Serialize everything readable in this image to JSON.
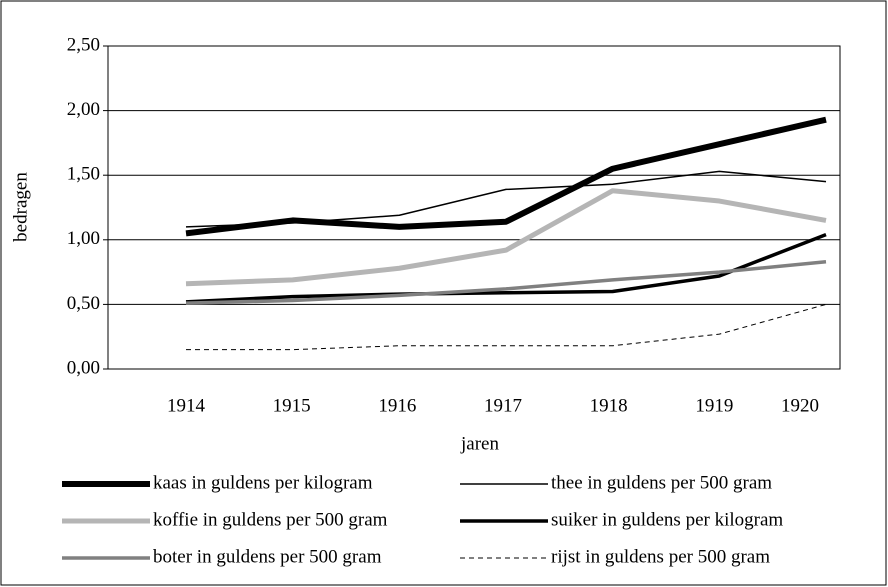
{
  "chart_data": {
    "type": "line",
    "x_label": "jaren",
    "y_label": "bedragen",
    "categories": [
      "1914",
      "1915",
      "1916",
      "1917",
      "1918",
      "1919",
      "1920"
    ],
    "ylim": [
      0,
      2.5
    ],
    "yticks": [
      {
        "value": 0,
        "label": "0,00"
      },
      {
        "value": 0.5,
        "label": "0,50"
      },
      {
        "value": 1,
        "label": "1,00"
      },
      {
        "value": 1.5,
        "label": "1,50"
      },
      {
        "value": 2,
        "label": "2,00"
      },
      {
        "value": 2.5,
        "label": "2,50"
      }
    ],
    "grid": true,
    "legend": "bottom",
    "series": [
      {
        "name": "kaas in guldens per kilogram",
        "color": "#000000",
        "width": 6,
        "dash": "none",
        "values": [
          1.05,
          1.15,
          1.1,
          1.14,
          1.55,
          1.74,
          1.93
        ]
      },
      {
        "name": "thee in guldens per 500 gram",
        "color": "#000000",
        "width": 1.5,
        "dash": "none",
        "values": [
          1.1,
          1.13,
          1.19,
          1.39,
          1.43,
          1.53,
          1.45
        ]
      },
      {
        "name": "koffie in guldens per 500 gram",
        "color": "#b5b5b5",
        "width": 5,
        "dash": "none",
        "values": [
          0.66,
          0.69,
          0.78,
          0.92,
          1.38,
          1.3,
          1.15
        ]
      },
      {
        "name": "suiker in guldens per kilogram",
        "color": "#000000",
        "width": 3.5,
        "dash": "none",
        "values": [
          0.52,
          0.56,
          0.58,
          0.59,
          0.6,
          0.72,
          1.04
        ]
      },
      {
        "name": "boter in guldens per 500 gram",
        "color": "#808080",
        "width": 3.5,
        "dash": "none",
        "values": [
          0.51,
          0.53,
          0.57,
          0.62,
          0.69,
          0.75,
          0.83
        ]
      },
      {
        "name": "rijst in guldens per 500 gram",
        "color": "#000000",
        "width": 1,
        "dash": "5,4",
        "values": [
          0.15,
          0.15,
          0.18,
          0.18,
          0.18,
          0.27,
          0.5
        ]
      }
    ]
  }
}
